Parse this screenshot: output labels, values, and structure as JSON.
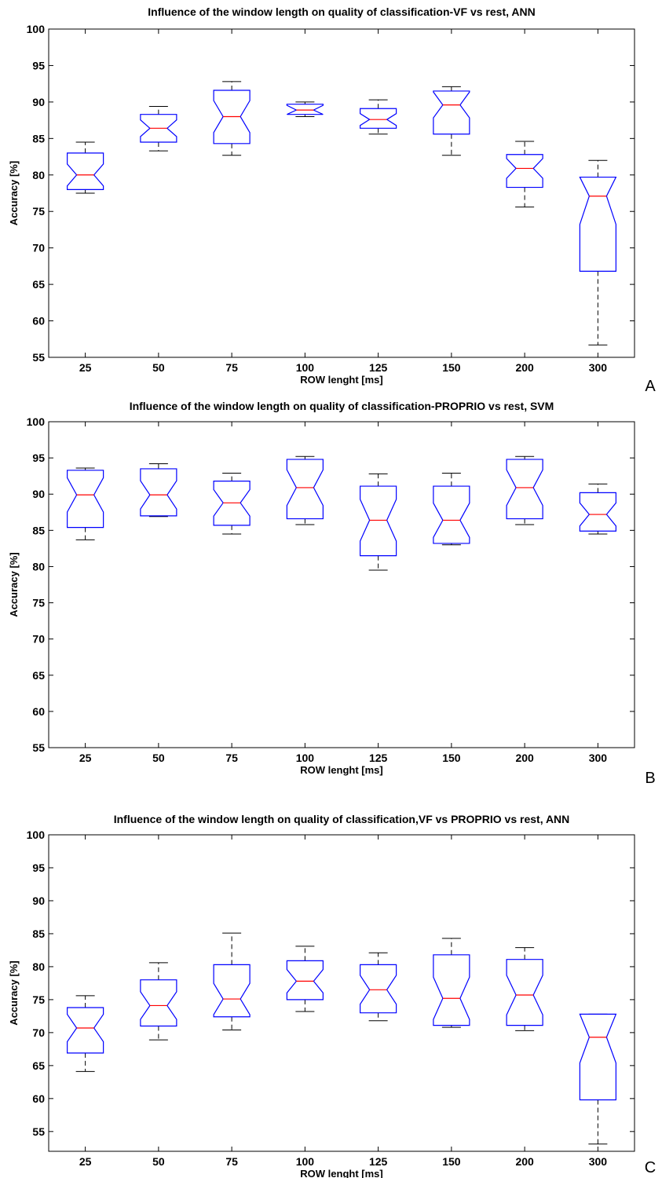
{
  "chart_data": [
    {
      "type": "box",
      "title": "Influence of the window length on quality of classification-VF vs rest, ANN",
      "xlabel": "ROW lenght [ms]",
      "ylabel": "Accuracy [%]",
      "panel_label": "A",
      "categories": [
        "25",
        "50",
        "75",
        "100",
        "125",
        "150",
        "200",
        "300"
      ],
      "ylim": [
        55,
        100
      ],
      "yticks": [
        55,
        60,
        65,
        70,
        75,
        80,
        85,
        90,
        95,
        100
      ],
      "boxes": [
        {
          "whisker_low": 77.5,
          "q1": 78.0,
          "median": 80.0,
          "q3": 83.0,
          "whisker_high": 84.5
        },
        {
          "whisker_low": 83.3,
          "q1": 84.5,
          "median": 86.4,
          "q3": 88.3,
          "whisker_high": 89.4
        },
        {
          "whisker_low": 82.7,
          "q1": 84.3,
          "median": 88.0,
          "q3": 91.6,
          "whisker_high": 92.8
        },
        {
          "whisker_low": 88.0,
          "q1": 88.3,
          "median": 88.9,
          "q3": 89.7,
          "whisker_high": 90.0
        },
        {
          "whisker_low": 85.6,
          "q1": 86.4,
          "median": 87.6,
          "q3": 89.1,
          "whisker_high": 90.3
        },
        {
          "whisker_low": 82.7,
          "q1": 85.6,
          "median": 89.6,
          "q3": 91.5,
          "whisker_high": 92.1
        },
        {
          "whisker_low": 75.6,
          "q1": 78.3,
          "median": 80.9,
          "q3": 82.8,
          "whisker_high": 84.6
        },
        {
          "whisker_low": 56.7,
          "q1": 66.8,
          "median": 77.1,
          "q3": 79.7,
          "whisker_high": 82.0
        }
      ]
    },
    {
      "type": "box",
      "title": "Influence of the window length on quality of classification-PROPRIO vs rest, SVM",
      "xlabel": "ROW lenght [ms]",
      "ylabel": "Accuracy [%]",
      "panel_label": "B",
      "categories": [
        "25",
        "50",
        "75",
        "100",
        "125",
        "150",
        "200",
        "300"
      ],
      "ylim": [
        55,
        100
      ],
      "yticks": [
        55,
        60,
        65,
        70,
        75,
        80,
        85,
        90,
        95,
        100
      ],
      "boxes": [
        {
          "whisker_low": 83.7,
          "q1": 85.4,
          "median": 89.9,
          "q3": 93.3,
          "whisker_high": 93.6
        },
        {
          "whisker_low": 86.9,
          "q1": 87.0,
          "median": 89.9,
          "q3": 93.5,
          "whisker_high": 94.2
        },
        {
          "whisker_low": 84.5,
          "q1": 85.7,
          "median": 88.8,
          "q3": 91.8,
          "whisker_high": 92.9
        },
        {
          "whisker_low": 85.8,
          "q1": 86.6,
          "median": 90.9,
          "q3": 94.8,
          "whisker_high": 95.2
        },
        {
          "whisker_low": 79.5,
          "q1": 81.5,
          "median": 86.4,
          "q3": 91.1,
          "whisker_high": 92.8
        },
        {
          "whisker_low": 83.0,
          "q1": 83.2,
          "median": 86.4,
          "q3": 91.1,
          "whisker_high": 92.9
        },
        {
          "whisker_low": 85.8,
          "q1": 86.6,
          "median": 90.9,
          "q3": 94.8,
          "whisker_high": 95.2
        },
        {
          "whisker_low": 84.5,
          "q1": 84.9,
          "median": 87.2,
          "q3": 90.2,
          "whisker_high": 91.4
        }
      ]
    },
    {
      "type": "box",
      "title": "Influence of the window length on quality of classification,VF vs PROPRIO vs rest, ANN",
      "xlabel": "ROW lenght [ms]",
      "ylabel": "Accuracy [%]",
      "panel_label": "C",
      "categories": [
        "25",
        "50",
        "75",
        "100",
        "125",
        "150",
        "200",
        "300"
      ],
      "ylim": [
        52,
        100
      ],
      "yticks": [
        55,
        60,
        65,
        70,
        75,
        80,
        85,
        90,
        95,
        100
      ],
      "boxes": [
        {
          "whisker_low": 64.1,
          "q1": 66.9,
          "median": 70.7,
          "q3": 73.8,
          "whisker_high": 75.6
        },
        {
          "whisker_low": 68.9,
          "q1": 71.0,
          "median": 74.1,
          "q3": 78.0,
          "whisker_high": 80.6
        },
        {
          "whisker_low": 70.4,
          "q1": 72.4,
          "median": 75.1,
          "q3": 80.3,
          "whisker_high": 85.1
        },
        {
          "whisker_low": 73.2,
          "q1": 75.0,
          "median": 77.8,
          "q3": 80.9,
          "whisker_high": 83.1
        },
        {
          "whisker_low": 71.8,
          "q1": 73.0,
          "median": 76.5,
          "q3": 80.3,
          "whisker_high": 82.1
        },
        {
          "whisker_low": 70.8,
          "q1": 71.1,
          "median": 75.2,
          "q3": 81.8,
          "whisker_high": 84.3
        },
        {
          "whisker_low": 70.3,
          "q1": 71.1,
          "median": 75.7,
          "q3": 81.1,
          "whisker_high": 82.9
        },
        {
          "whisker_low": 53.1,
          "q1": 59.8,
          "median": 69.3,
          "q3": 72.8,
          "whisker_high": 72.8
        }
      ]
    }
  ]
}
